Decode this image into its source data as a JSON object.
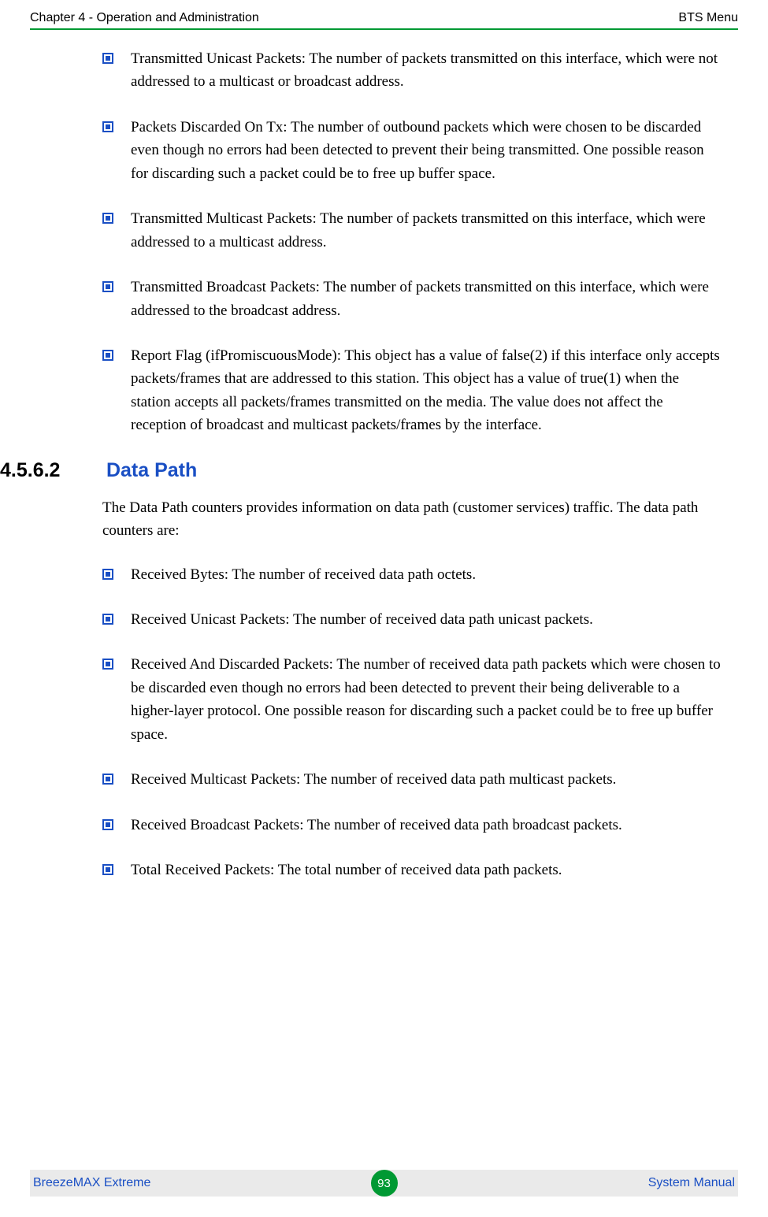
{
  "header": {
    "left": "Chapter 4 - Operation and Administration",
    "right": "BTS Menu"
  },
  "list1": [
    "Transmitted Unicast Packets: The number of packets transmitted on this interface, which were not addressed to a multicast or broadcast address.",
    "Packets Discarded On Tx: The number of outbound packets which were chosen to be discarded even though no errors had been detected to prevent their being transmitted. One possible reason for discarding such a packet could be to free up buffer space.",
    "Transmitted Multicast Packets: The number of packets transmitted on this interface, which were addressed to a multicast address.",
    "Transmitted Broadcast Packets: The number of packets transmitted on this interface, which were addressed to the broadcast address.",
    "Report Flag (ifPromiscuousMode): This object has a value of false(2) if this interface only accepts packets/frames that are addressed to this station. This object has a value of true(1) when the station accepts all packets/frames transmitted on the media. The value does not affect the reception of broadcast and multicast packets/frames by the interface."
  ],
  "section": {
    "number": "4.5.6.2",
    "title": "Data Path",
    "intro": "The Data Path counters provides information on data path (customer services) traffic. The data path counters are:"
  },
  "list2": [
    "Received Bytes: The number of received data path octets.",
    "Received Unicast Packets: The number of received data path unicast packets.",
    "Received And Discarded Packets: The number of received data path packets which were chosen to be discarded even though no errors had been detected to prevent their being deliverable to a higher-layer protocol. One possible reason for discarding such a packet could be to free up buffer space.",
    "Received Multicast Packets: The number of received data path multicast packets.",
    "Received Broadcast Packets: The number of received data path broadcast packets.",
    "Total Received Packets: The total number of received data path packets."
  ],
  "footer": {
    "left": "BreezeMAX Extreme",
    "page": "93",
    "right": "System Manual"
  },
  "colors": {
    "accent_green": "#009933",
    "accent_blue": "#1a4fc4",
    "footer_bg": "#eaeaea"
  }
}
